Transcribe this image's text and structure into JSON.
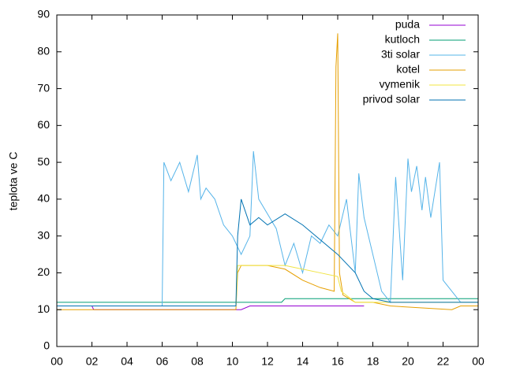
{
  "chart_data": {
    "type": "line",
    "ylabel": "teplota ve C",
    "xlim": [
      0,
      24
    ],
    "xticks": [
      {
        "value": 0,
        "label": "00"
      },
      {
        "value": 2,
        "label": "02"
      },
      {
        "value": 4,
        "label": "04"
      },
      {
        "value": 6,
        "label": "06"
      },
      {
        "value": 8,
        "label": "08"
      },
      10,
      12,
      14,
      16,
      18,
      20,
      22,
      {
        "value": 24,
        "label": "00"
      }
    ],
    "ylim": [
      0,
      90
    ],
    "yticks": [
      0,
      10,
      20,
      30,
      40,
      50,
      60,
      70,
      80,
      90
    ],
    "legend": "top-right",
    "series": [
      {
        "name": "puda",
        "color": "#9400d3",
        "x": [
          0,
          2,
          2.1,
          10.5,
          11,
          17.5
        ],
        "values": [
          11,
          11,
          10,
          10,
          11,
          11
        ]
      },
      {
        "name": "kutloch",
        "color": "#009e73",
        "x": [
          0,
          12.8,
          13,
          24
        ],
        "values": [
          12,
          12,
          13,
          13
        ]
      },
      {
        "name": "3ti solar",
        "color": "#56b4e9",
        "x": [
          0,
          6,
          6.1,
          6.5,
          7,
          7.5,
          8,
          8.2,
          8.5,
          9,
          9.5,
          10,
          10.2,
          10.5,
          11,
          11.2,
          11.5,
          12,
          12.5,
          13,
          13.5,
          14,
          14.5,
          15,
          15.5,
          16,
          16.5,
          17,
          17.2,
          17.5,
          18,
          18.5,
          19,
          19.3,
          19.7,
          20,
          20.2,
          20.5,
          20.8,
          21,
          21.3,
          21.8,
          22,
          23,
          24
        ],
        "values": [
          11,
          11,
          50,
          45,
          50,
          42,
          52,
          40,
          43,
          40,
          33,
          30,
          28,
          25,
          30,
          53,
          40,
          36,
          32,
          22,
          28,
          20,
          30,
          28,
          33,
          30,
          40,
          20,
          47,
          35,
          25,
          15,
          12,
          46,
          18,
          51,
          42,
          49,
          37,
          46,
          35,
          50,
          18,
          12,
          12
        ]
      },
      {
        "name": "kotel",
        "color": "#e69f00",
        "x": [
          0,
          10.2,
          10.3,
          10.5,
          12,
          13,
          14,
          15,
          15.8,
          15.9,
          16,
          16.1,
          16.3,
          17,
          18,
          19,
          22.5,
          23,
          24
        ],
        "values": [
          10,
          10,
          20,
          22,
          22,
          21,
          18,
          16,
          15,
          76,
          85,
          20,
          14,
          12,
          12,
          11,
          10,
          11,
          11
        ]
      },
      {
        "name": "vymenik",
        "color": "#f0e442",
        "x": [
          0,
          10.2,
          10.3,
          11,
          13,
          15,
          16,
          16.2,
          17,
          24
        ],
        "values": [
          11,
          11,
          22,
          22,
          22,
          20,
          19,
          15,
          12,
          12
        ]
      },
      {
        "name": "privod solar",
        "color": "#0072b2",
        "x": [
          0,
          10.2,
          10.3,
          10.5,
          11,
          11.5,
          12,
          13,
          14,
          15,
          16,
          17,
          17.5,
          18,
          19,
          24
        ],
        "values": [
          11,
          11,
          30,
          40,
          33,
          35,
          33,
          36,
          33,
          29,
          25,
          20,
          15,
          13,
          12,
          12
        ]
      }
    ]
  }
}
